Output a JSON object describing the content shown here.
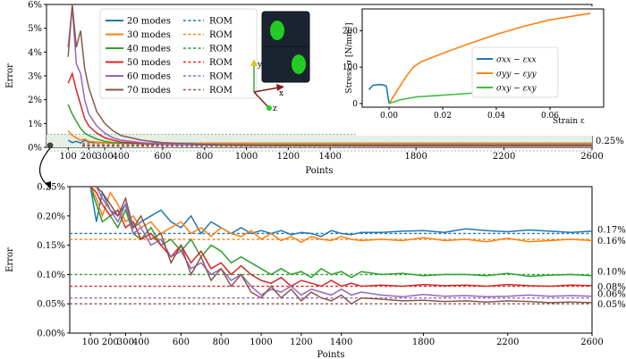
{
  "chart_data": [
    {
      "type": "line",
      "panel": "top",
      "xlabel": "Points",
      "ylabel": "Error",
      "xlim": [
        0,
        2600
      ],
      "ylim": [
        0,
        6
      ],
      "x_ticks": [
        100,
        200,
        300,
        400,
        600,
        800,
        1000,
        1200,
        1400,
        1800,
        2200,
        2600
      ],
      "x_tick_labels": [
        "100",
        "200",
        "300",
        "400",
        "600",
        "800",
        "1000",
        "1200",
        "1400",
        "1800",
        "2200",
        "2600"
      ],
      "y_ticks": [
        0,
        1,
        2,
        3,
        4,
        5,
        6
      ],
      "y_tick_labels": [
        "0%",
        "1%",
        "2%",
        "3%",
        "4%",
        "5%",
        "6%"
      ],
      "zoom_band": [
        0,
        0.25
      ],
      "zoom_band_label": "0.25%",
      "legend_placement": "top-left",
      "legend_marker_label": "ROM",
      "series": [
        {
          "name": "20 modes",
          "color": "#1f77b4",
          "rom": 0.17,
          "x": [
            100,
            120,
            140,
            160,
            180,
            200,
            250,
            300,
            350,
            400,
            500,
            600,
            800,
            1000,
            1200,
            1400,
            1800,
            2200,
            2600
          ],
          "y": [
            0.3,
            0.2,
            0.25,
            0.18,
            0.3,
            0.22,
            0.2,
            0.19,
            0.18,
            0.18,
            0.18,
            0.17,
            0.17,
            0.17,
            0.17,
            0.17,
            0.17,
            0.17,
            0.17
          ]
        },
        {
          "name": "30 modes",
          "color": "#ff7f0e",
          "rom": 0.16,
          "x": [
            100,
            120,
            140,
            160,
            180,
            200,
            250,
            300,
            350,
            400,
            500,
            600,
            800,
            1000,
            1200,
            1400,
            1800,
            2200,
            2600
          ],
          "y": [
            0.7,
            0.5,
            0.4,
            0.3,
            0.35,
            0.25,
            0.22,
            0.2,
            0.18,
            0.17,
            0.17,
            0.16,
            0.16,
            0.16,
            0.16,
            0.16,
            0.16,
            0.16,
            0.16
          ]
        },
        {
          "name": "40 modes",
          "color": "#2ca02c",
          "rom": 0.1,
          "x": [
            100,
            120,
            140,
            160,
            180,
            200,
            250,
            300,
            350,
            400,
            500,
            600,
            800,
            1000,
            1200,
            1400,
            1800,
            2200,
            2600
          ],
          "y": [
            1.8,
            1.4,
            1.1,
            0.8,
            0.6,
            0.5,
            0.35,
            0.25,
            0.2,
            0.18,
            0.15,
            0.14,
            0.12,
            0.1,
            0.1,
            0.1,
            0.1,
            0.1,
            0.1
          ]
        },
        {
          "name": "50 modes",
          "color": "#d62728",
          "rom": 0.08,
          "x": [
            100,
            120,
            140,
            160,
            180,
            200,
            250,
            300,
            350,
            400,
            500,
            600,
            800,
            1000,
            1200,
            1400,
            1800,
            2200,
            2600
          ],
          "y": [
            2.7,
            3.1,
            2.4,
            1.8,
            1.2,
            0.9,
            0.6,
            0.4,
            0.3,
            0.22,
            0.16,
            0.13,
            0.11,
            0.09,
            0.08,
            0.08,
            0.08,
            0.08,
            0.08
          ]
        },
        {
          "name": "60 modes",
          "color": "#9467bd",
          "rom": 0.06,
          "x": [
            100,
            120,
            140,
            160,
            180,
            200,
            250,
            300,
            350,
            400,
            500,
            600,
            800,
            1000,
            1200,
            1400,
            1800,
            2200,
            2600
          ],
          "y": [
            4.2,
            5.9,
            3.5,
            3.1,
            2.0,
            1.4,
            0.9,
            0.6,
            0.4,
            0.3,
            0.2,
            0.14,
            0.1,
            0.08,
            0.07,
            0.07,
            0.06,
            0.06,
            0.06
          ]
        },
        {
          "name": "70 modes",
          "color": "#8c564b",
          "rom": 0.05,
          "x": [
            100,
            120,
            140,
            160,
            180,
            200,
            250,
            300,
            350,
            400,
            500,
            600,
            800,
            1000,
            1200,
            1400,
            1800,
            2200,
            2600
          ],
          "y": [
            3.8,
            6.0,
            4.2,
            4.9,
            3.3,
            2.5,
            1.5,
            1.0,
            0.7,
            0.5,
            0.3,
            0.2,
            0.12,
            0.08,
            0.07,
            0.06,
            0.05,
            0.05,
            0.05
          ]
        }
      ]
    },
    {
      "type": "line",
      "panel": "bottom",
      "xlabel": "Points",
      "ylabel": "Error",
      "xlim": [
        0,
        2600
      ],
      "ylim": [
        0,
        0.25
      ],
      "x_ticks": [
        100,
        200,
        300,
        400,
        600,
        800,
        1000,
        1200,
        1400,
        1800,
        2200,
        2600
      ],
      "x_tick_labels": [
        "100",
        "200",
        "300",
        "400",
        "600",
        "800",
        "1000",
        "1200",
        "1400",
        "1800",
        "2200",
        "2600"
      ],
      "y_ticks": [
        0,
        0.05,
        0.1,
        0.15,
        0.2,
        0.25
      ],
      "y_tick_labels": [
        "0.00%",
        "0.05%",
        "0.10%",
        "0.15%",
        "0.20%",
        "0.25%"
      ],
      "rom_labels": [
        "0.17%",
        "0.16%",
        "0.10%",
        "0.08%",
        "0.06%",
        "0.05%"
      ],
      "series": [
        {
          "name": "20 modes",
          "color": "#1f77b4",
          "rom": 0.17,
          "x": [
            100,
            130,
            160,
            200,
            250,
            300,
            350,
            400,
            450,
            500,
            550,
            600,
            650,
            700,
            750,
            800,
            850,
            900,
            950,
            1000,
            1050,
            1100,
            1150,
            1200,
            1250,
            1300,
            1350,
            1400,
            1450,
            1500,
            1600,
            1700,
            1800,
            1900,
            2000,
            2100,
            2200,
            2300,
            2400,
            2500,
            2600
          ],
          "y": [
            0.25,
            0.19,
            0.24,
            0.21,
            0.2,
            0.22,
            0.18,
            0.19,
            0.2,
            0.21,
            0.19,
            0.18,
            0.2,
            0.17,
            0.19,
            0.18,
            0.17,
            0.18,
            0.17,
            0.175,
            0.17,
            0.175,
            0.168,
            0.172,
            0.17,
            0.165,
            0.175,
            0.17,
            0.168,
            0.172,
            0.172,
            0.174,
            0.175,
            0.172,
            0.178,
            0.175,
            0.173,
            0.176,
            0.174,
            0.172,
            0.174
          ]
        },
        {
          "name": "30 modes",
          "color": "#ff7f0e",
          "rom": 0.16,
          "x": [
            100,
            130,
            160,
            200,
            250,
            300,
            350,
            400,
            450,
            500,
            550,
            600,
            650,
            700,
            750,
            800,
            850,
            900,
            950,
            1000,
            1050,
            1100,
            1150,
            1200,
            1250,
            1300,
            1350,
            1400,
            1450,
            1500,
            1600,
            1700,
            1800,
            1900,
            2000,
            2100,
            2200,
            2300,
            2400,
            2500,
            2600
          ],
          "y": [
            0.25,
            0.23,
            0.2,
            0.24,
            0.22,
            0.19,
            0.2,
            0.18,
            0.19,
            0.17,
            0.18,
            0.19,
            0.17,
            0.18,
            0.165,
            0.18,
            0.17,
            0.165,
            0.175,
            0.16,
            0.17,
            0.158,
            0.165,
            0.155,
            0.165,
            0.16,
            0.158,
            0.165,
            0.16,
            0.158,
            0.16,
            0.158,
            0.163,
            0.158,
            0.16,
            0.156,
            0.162,
            0.156,
            0.158,
            0.16,
            0.158
          ]
        },
        {
          "name": "40 modes",
          "color": "#2ca02c",
          "rom": 0.1,
          "x": [
            100,
            130,
            160,
            200,
            250,
            300,
            350,
            400,
            450,
            500,
            550,
            600,
            650,
            700,
            750,
            800,
            850,
            900,
            950,
            1000,
            1050,
            1100,
            1150,
            1200,
            1250,
            1300,
            1350,
            1400,
            1450,
            1500,
            1600,
            1700,
            1800,
            1900,
            2000,
            2100,
            2200,
            2300,
            2400,
            2500,
            2600
          ],
          "y": [
            0.25,
            0.22,
            0.19,
            0.2,
            0.18,
            0.21,
            0.17,
            0.16,
            0.18,
            0.15,
            0.16,
            0.14,
            0.16,
            0.13,
            0.15,
            0.14,
            0.12,
            0.13,
            0.12,
            0.11,
            0.1,
            0.11,
            0.1,
            0.105,
            0.095,
            0.11,
            0.1,
            0.105,
            0.095,
            0.105,
            0.1,
            0.102,
            0.098,
            0.1,
            0.1,
            0.098,
            0.102,
            0.097,
            0.099,
            0.1,
            0.098
          ]
        },
        {
          "name": "50 modes",
          "color": "#d62728",
          "rom": 0.08,
          "x": [
            100,
            130,
            160,
            200,
            250,
            300,
            350,
            400,
            450,
            500,
            550,
            600,
            650,
            700,
            750,
            800,
            850,
            900,
            950,
            1000,
            1050,
            1100,
            1150,
            1200,
            1250,
            1300,
            1350,
            1400,
            1450,
            1500,
            1600,
            1700,
            1800,
            1900,
            2000,
            2100,
            2200,
            2300,
            2400,
            2500,
            2600
          ],
          "y": [
            0.25,
            0.24,
            0.22,
            0.2,
            0.21,
            0.18,
            0.19,
            0.16,
            0.17,
            0.15,
            0.13,
            0.15,
            0.12,
            0.14,
            0.11,
            0.12,
            0.1,
            0.115,
            0.1,
            0.09,
            0.085,
            0.095,
            0.08,
            0.09,
            0.085,
            0.08,
            0.09,
            0.08,
            0.085,
            0.08,
            0.082,
            0.08,
            0.083,
            0.081,
            0.082,
            0.08,
            0.083,
            0.081,
            0.08,
            0.082,
            0.081
          ]
        },
        {
          "name": "60 modes",
          "color": "#9467bd",
          "rom": 0.06,
          "x": [
            100,
            130,
            160,
            200,
            250,
            300,
            350,
            400,
            450,
            500,
            550,
            600,
            650,
            700,
            750,
            800,
            850,
            900,
            950,
            1000,
            1050,
            1100,
            1150,
            1200,
            1250,
            1300,
            1350,
            1400,
            1450,
            1500,
            1600,
            1700,
            1800,
            1900,
            2000,
            2100,
            2200,
            2300,
            2400,
            2500,
            2600
          ],
          "y": [
            0.25,
            0.25,
            0.23,
            0.21,
            0.19,
            0.22,
            0.17,
            0.18,
            0.15,
            0.16,
            0.13,
            0.14,
            0.11,
            0.12,
            0.1,
            0.11,
            0.09,
            0.1,
            0.08,
            0.065,
            0.075,
            0.07,
            0.08,
            0.065,
            0.075,
            0.07,
            0.065,
            0.075,
            0.065,
            0.07,
            0.065,
            0.062,
            0.066,
            0.063,
            0.064,
            0.062,
            0.063,
            0.065,
            0.063,
            0.064,
            0.063
          ]
        },
        {
          "name": "70 modes",
          "color": "#8c564b",
          "rom": 0.05,
          "x": [
            100,
            130,
            160,
            200,
            250,
            300,
            350,
            400,
            450,
            500,
            550,
            600,
            650,
            700,
            750,
            800,
            850,
            900,
            950,
            1000,
            1050,
            1100,
            1150,
            1200,
            1250,
            1300,
            1350,
            1400,
            1450,
            1500,
            1600,
            1700,
            1800,
            1900,
            2000,
            2100,
            2200,
            2300,
            2400,
            2500,
            2600
          ],
          "y": [
            0.25,
            0.25,
            0.24,
            0.22,
            0.2,
            0.23,
            0.18,
            0.2,
            0.16,
            0.17,
            0.12,
            0.15,
            0.1,
            0.13,
            0.09,
            0.11,
            0.08,
            0.1,
            0.07,
            0.06,
            0.08,
            0.06,
            0.075,
            0.055,
            0.07,
            0.06,
            0.055,
            0.065,
            0.05,
            0.06,
            0.058,
            0.055,
            0.056,
            0.054,
            0.055,
            0.053,
            0.055,
            0.054,
            0.052,
            0.053,
            0.052
          ]
        }
      ]
    },
    {
      "type": "line",
      "panel": "inset",
      "xlabel": "Strain ε",
      "ylabel": "Stress σ [N/mm²]",
      "xlim": [
        -0.01,
        0.08
      ],
      "ylim": [
        -10,
        260
      ],
      "x_ticks": [
        0.0,
        0.02,
        0.04,
        0.06
      ],
      "x_tick_labels": [
        "0.00",
        "0.02",
        "0.04",
        "0.06"
      ],
      "y_ticks": [
        0,
        100,
        200
      ],
      "y_tick_labels": [
        "0",
        "100",
        "200"
      ],
      "legend_placement": "center-right",
      "series": [
        {
          "name": "σxx − εxx",
          "color": "#1f77b4",
          "x": [
            -0.0075,
            -0.006,
            -0.004,
            -0.002,
            -0.001,
            0.0
          ],
          "y": [
            38,
            50,
            52,
            51,
            48,
            0
          ]
        },
        {
          "name": "σyy − εyy",
          "color": "#ff7f0e",
          "x": [
            0.0,
            0.003,
            0.006,
            0.009,
            0.012,
            0.02,
            0.03,
            0.04,
            0.05,
            0.06,
            0.07,
            0.075
          ],
          "y": [
            0,
            35,
            70,
            100,
            115,
            138,
            165,
            190,
            212,
            230,
            242,
            248
          ]
        },
        {
          "name": "σxy − εxy",
          "color": "#44bb44",
          "x": [
            0.0,
            0.004,
            0.01,
            0.02,
            0.03,
            0.04,
            0.05,
            0.055
          ],
          "y": [
            0,
            10,
            18,
            23,
            28,
            31,
            34,
            35
          ]
        }
      ]
    }
  ]
}
